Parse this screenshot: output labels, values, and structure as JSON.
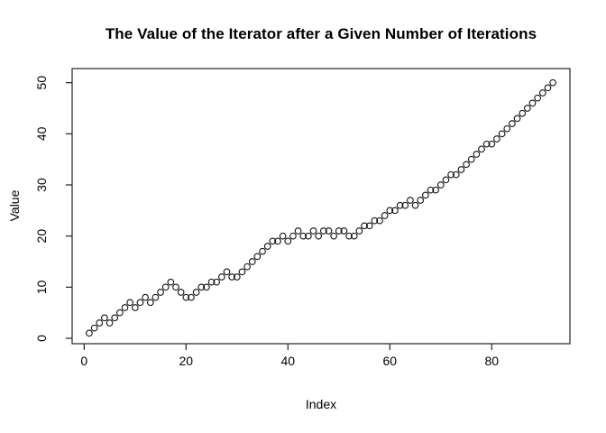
{
  "chart_data": {
    "type": "scatter",
    "title": "The Value of the Iterator after a Given Number of Iterations",
    "xlabel": "Index",
    "ylabel": "Value",
    "x_ticks": [
      0,
      20,
      40,
      60,
      80
    ],
    "y_ticks": [
      0,
      10,
      20,
      30,
      40,
      50
    ],
    "xlim": [
      1,
      92
    ],
    "ylim": [
      1,
      50
    ],
    "grid": false,
    "legend": "none",
    "marker": "open-circle",
    "marker_color": "#111111",
    "axis_color": "#222222",
    "background": "#ffffff",
    "x_start": 1,
    "x_step": 1,
    "values": [
      1,
      2,
      3,
      4,
      3,
      4,
      5,
      6,
      7,
      6,
      7,
      8,
      7,
      8,
      9,
      10,
      11,
      10,
      9,
      8,
      8,
      9,
      10,
      10,
      11,
      11,
      12,
      13,
      12,
      12,
      13,
      14,
      15,
      16,
      17,
      18,
      19,
      19,
      20,
      19,
      20,
      21,
      20,
      20,
      21,
      20,
      21,
      21,
      20,
      21,
      21,
      20,
      20,
      21,
      22,
      22,
      23,
      23,
      24,
      25,
      25,
      26,
      26,
      27,
      26,
      27,
      28,
      29,
      29,
      30,
      31,
      32,
      32,
      33,
      34,
      35,
      36,
      37,
      38,
      38,
      39,
      40,
      41,
      42,
      43,
      44,
      45,
      46,
      47,
      48,
      49,
      50
    ]
  }
}
